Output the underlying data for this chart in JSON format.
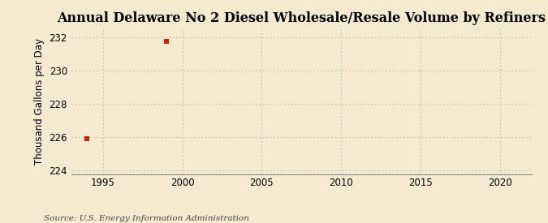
{
  "title": "Annual Delaware No 2 Diesel Wholesale/Resale Volume by Refiners",
  "ylabel": "Thousand Gallons per Day",
  "source_text": "Source: U.S. Energy Information Administration",
  "background_color": "#f5e9d0",
  "plot_background_color": "#f5e9d0",
  "data_x": [
    1994,
    1999
  ],
  "data_y": [
    225.9,
    231.75
  ],
  "marker_color": "#cc2200",
  "marker_size": 4,
  "xlim": [
    1993,
    2022
  ],
  "ylim": [
    223.8,
    232.5
  ],
  "yticks": [
    224,
    226,
    228,
    230,
    232
  ],
  "xticks": [
    1995,
    2000,
    2005,
    2010,
    2015,
    2020
  ],
  "grid_color": "#aaaaaa",
  "grid_linestyle": ":",
  "title_fontsize": 11.5,
  "label_fontsize": 8.5,
  "tick_fontsize": 8.5,
  "source_fontsize": 7.5,
  "spine_color": "#888888"
}
